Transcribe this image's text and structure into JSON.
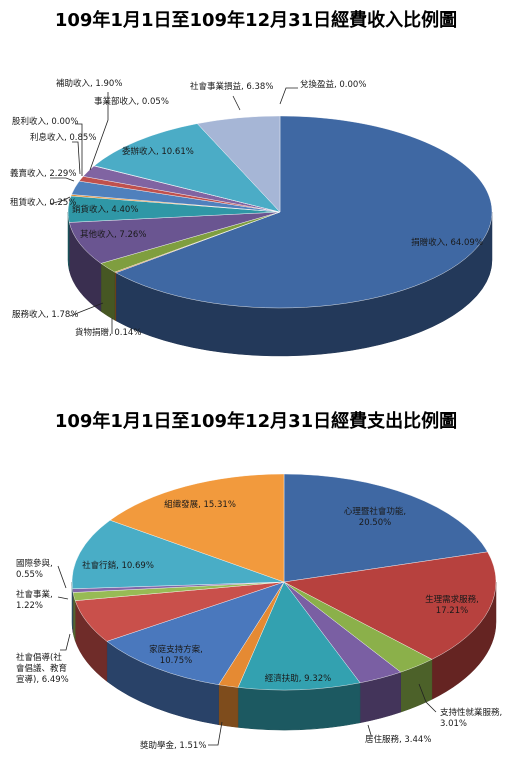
{
  "chart_data": [
    {
      "type": "pie",
      "title": "109年1月1日至109年12月31日經費收入比例圖",
      "series": [
        {
          "label": "捐贈收入, 64.09%",
          "value": 64.09,
          "color": "#3f68a3"
        },
        {
          "label": "貨物捐贈, 0.14%",
          "value": 0.14,
          "color": "#c9762d"
        },
        {
          "label": "服務收入, 1.78%",
          "value": 1.78,
          "color": "#7f9e3f"
        },
        {
          "label": "其他收入, 7.26%",
          "value": 7.26,
          "color": "#6a5591"
        },
        {
          "label": "銷貨收入, 4.40%",
          "value": 4.4,
          "color": "#2f97a6"
        },
        {
          "label": "租賃收入, 0.25%",
          "value": 0.25,
          "color": "#e08a2e"
        },
        {
          "label": "義賣收入, 2.29%",
          "value": 2.29,
          "color": "#4f80bd"
        },
        {
          "label": "利息收入, 0.85%",
          "value": 0.85,
          "color": "#c0504d"
        },
        {
          "label": "股利收入, 0.00%",
          "value": 0.0,
          "color": "#9bbb59"
        },
        {
          "label": "補助收入, 1.90%",
          "value": 1.9,
          "color": "#8064a2"
        },
        {
          "label": "事業部收入, 0.05%",
          "value": 0.05,
          "color": "#4bacc6"
        },
        {
          "label": "委辦收入, 10.61%",
          "value": 10.61,
          "color": "#4bacc6"
        },
        {
          "label": "社會事業損益, 6.38%",
          "value": 6.38,
          "color": "#a6b6d6"
        },
        {
          "label": "兌換盈益, 0.00%",
          "value": 0.0,
          "color": "#4f80bd"
        }
      ]
    },
    {
      "type": "pie",
      "title": "109年1月1日至109年12月31日經費支出比例圖",
      "series": [
        {
          "label": [
            "心理暨社會功能,",
            "20.50%"
          ],
          "value": 20.5,
          "color": "#3f68a3"
        },
        {
          "label": [
            "生理需求服務,",
            "17.21%"
          ],
          "value": 17.21,
          "color": "#b7413e"
        },
        {
          "label": [
            "支持性就業服務,",
            "3.01%"
          ],
          "value": 3.01,
          "color": "#8bb04a"
        },
        {
          "label": [
            "居住服務, 3.44%"
          ],
          "value": 3.44,
          "color": "#7a5fa3"
        },
        {
          "label": [
            "經濟扶助, 9.32%"
          ],
          "value": 9.32,
          "color": "#33a1b0"
        },
        {
          "label": [
            "獎助學金, 1.51%"
          ],
          "value": 1.51,
          "color": "#e58a33"
        },
        {
          "label": [
            "家庭支持方案,",
            "10.75%"
          ],
          "value": 10.75,
          "color": "#4a78bd"
        },
        {
          "label": [
            "社會倡導(社",
            "會倡議、教育",
            "宣導), 6.49%"
          ],
          "value": 6.49,
          "color": "#c9504b"
        },
        {
          "label": [
            "社會事業,",
            "1.22%"
          ],
          "value": 1.22,
          "color": "#97bb55"
        },
        {
          "label": [
            "國際參與,",
            "0.55%"
          ],
          "value": 0.55,
          "color": "#8166a8"
        },
        {
          "label": [
            "社會行銷, 10.69%"
          ],
          "value": 10.69,
          "color": "#49adc6"
        },
        {
          "label": [
            "組織發展, 15.31%"
          ],
          "value": 15.31,
          "color": "#f29a3d"
        }
      ]
    }
  ]
}
